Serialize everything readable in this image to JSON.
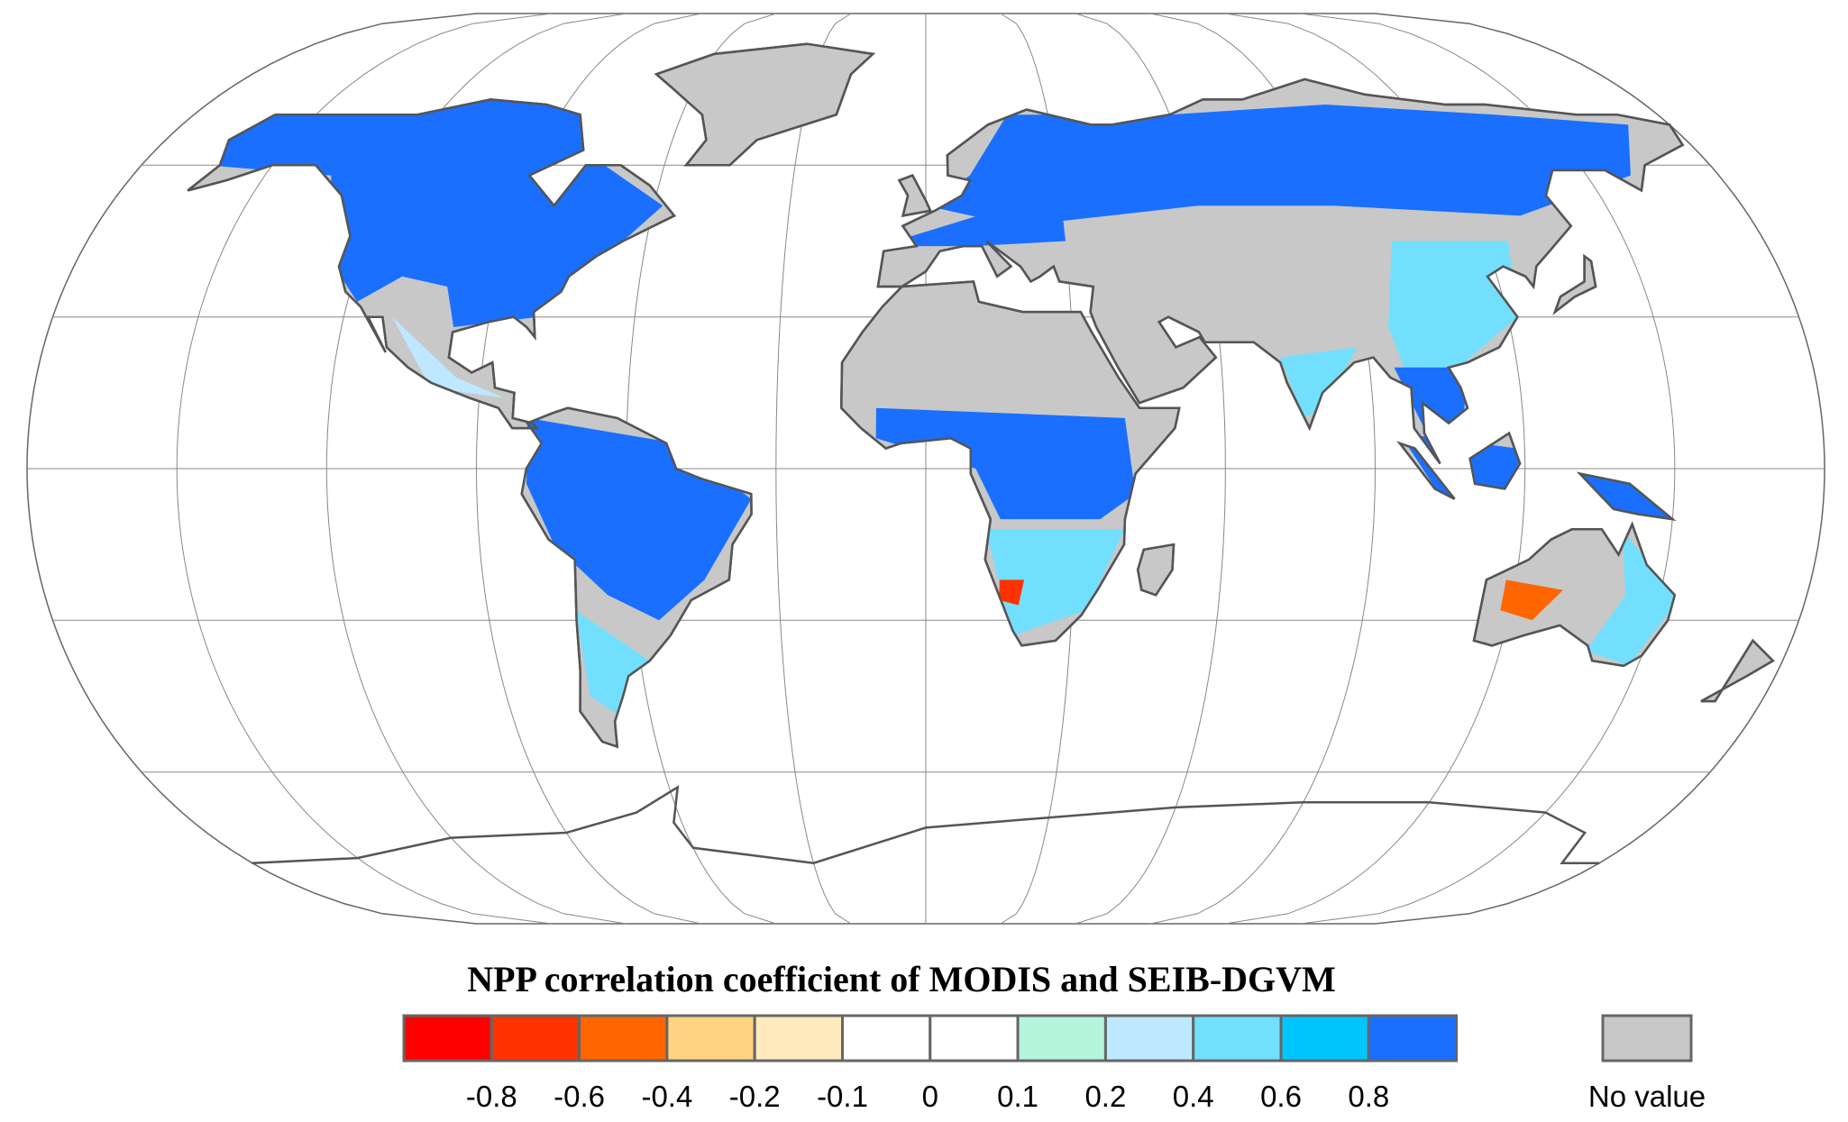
{
  "legend": {
    "title": "NPP correlation coefficient of MODIS and SEIB-DGVM",
    "colors": [
      "#ff0000",
      "#ff3300",
      "#ff6600",
      "#ffd37f",
      "#ffebbe",
      "#ffffff",
      "#ffffff",
      "#b4f5dc",
      "#bee8ff",
      "#73dfff",
      "#00c5ff",
      "#1a6fff"
    ],
    "ticks": [
      -0.8,
      -0.6,
      -0.4,
      -0.2,
      -0.1,
      0,
      0.1,
      0.2,
      0.4,
      0.6,
      0.8
    ],
    "no_value": {
      "label": "No value",
      "color": "#c8c8c8"
    }
  }
}
